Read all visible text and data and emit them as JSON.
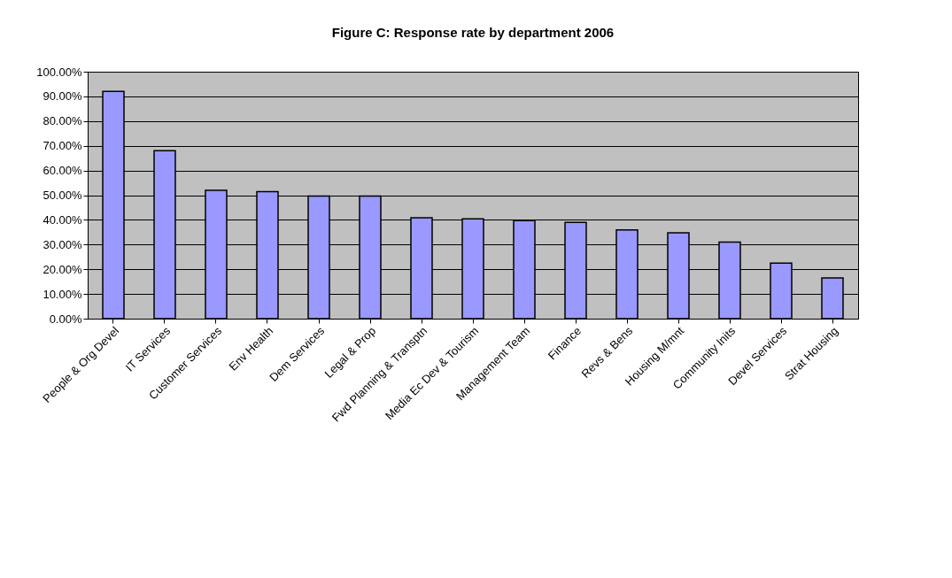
{
  "chart_data": {
    "type": "bar",
    "title": "Figure C: Response rate by department 2006",
    "categories": [
      "People & Org Devel",
      "IT Services",
      "Customer Services",
      "Env Health",
      "Dem Services",
      "Legal & Prop",
      "Fwd Planning & Transptn",
      "Media Ec Dev & Tourism",
      "Management Team",
      "Finance",
      "Revs & Bens",
      "Housing M/mnt",
      "Community Inits",
      "Devel Services",
      "Strat Housing"
    ],
    "values": [
      92,
      68,
      52,
      51.4,
      49.6,
      49.6,
      40.9,
      40.4,
      39.7,
      39,
      35.9,
      34.8,
      31,
      22.5,
      16.5
    ],
    "color": "#9999ff",
    "ylim": [
      0,
      100
    ],
    "yticks": [
      {
        "value": 0,
        "label": "0.00%"
      },
      {
        "value": 10,
        "label": "10.00%"
      },
      {
        "value": 20,
        "label": "20.00%"
      },
      {
        "value": 30,
        "label": "30.00%"
      },
      {
        "value": 40,
        "label": "40.00%"
      },
      {
        "value": 50,
        "label": "50.00%"
      },
      {
        "value": 60,
        "label": "60.00%"
      },
      {
        "value": 70,
        "label": "70.00%"
      },
      {
        "value": 80,
        "label": "80.00%"
      },
      {
        "value": 90,
        "label": "90.00%"
      },
      {
        "value": 100,
        "label": "100.00%"
      }
    ],
    "grid": "y"
  }
}
